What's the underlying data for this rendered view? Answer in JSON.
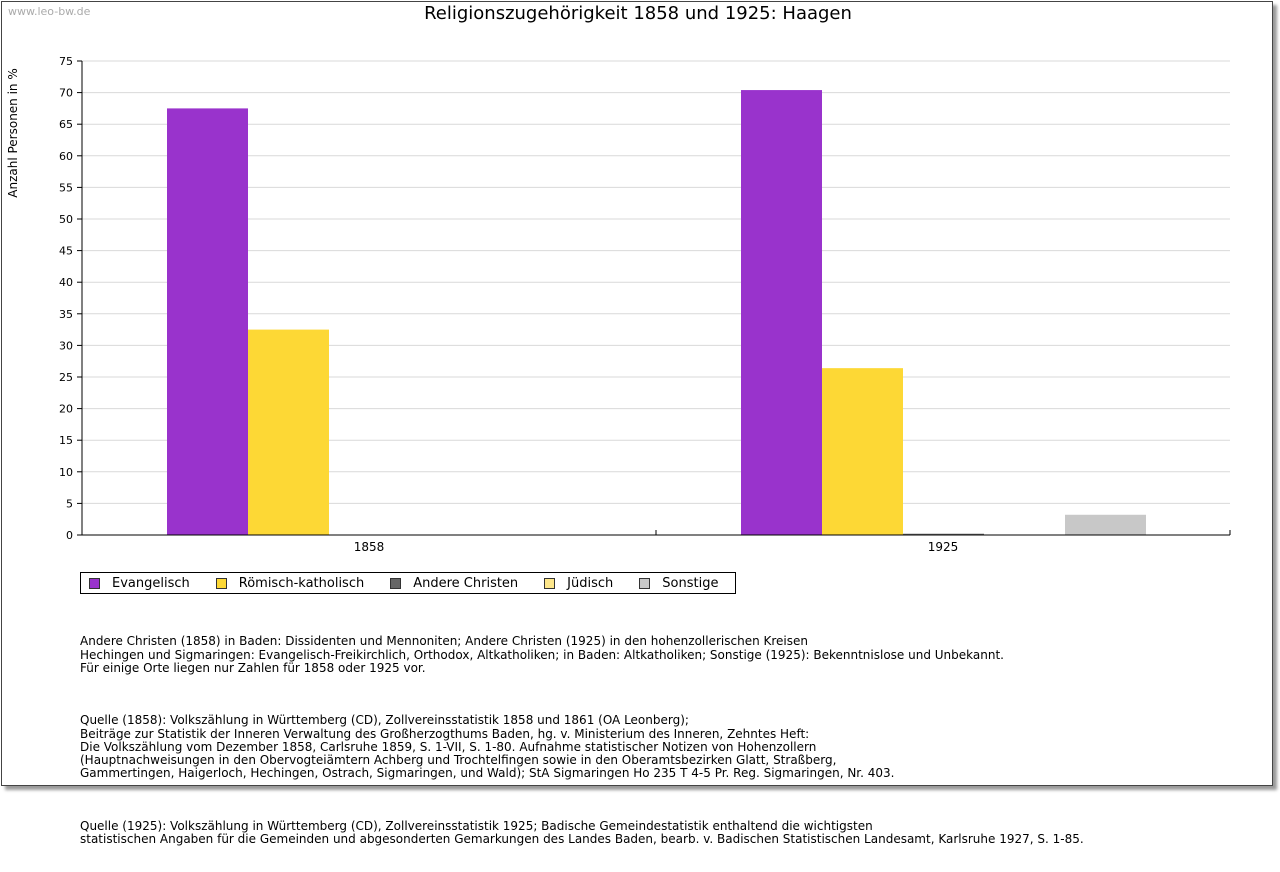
{
  "watermark": "www.leo-bw.de",
  "colors": {
    "evangelisch": "#9933cc",
    "roemisch_katholisch": "#fdd835",
    "andere_christen": "#666666",
    "juedisch": "#fde68a",
    "sonstige": "#c8c8c8",
    "grid": "#d9d9d9"
  },
  "chart_data": {
    "type": "bar",
    "title": "Religionszugehörigkeit 1858 und 1925: Haagen",
    "xlabel": "",
    "ylabel": "Anzahl Personen in %",
    "ylim": [
      0,
      75
    ],
    "yticks": [
      0,
      5,
      10,
      15,
      20,
      25,
      30,
      35,
      40,
      45,
      50,
      55,
      60,
      65,
      70,
      75
    ],
    "grid": true,
    "legend_position": "bottom",
    "categories": [
      "1858",
      "1925"
    ],
    "series": [
      {
        "name": "Evangelisch",
        "values": [
          67.5,
          70.4
        ]
      },
      {
        "name": "Römisch-katholisch",
        "values": [
          32.5,
          26.4
        ]
      },
      {
        "name": "Andere Christen",
        "values": [
          0,
          0.2
        ]
      },
      {
        "name": "Jüdisch",
        "values": [
          0,
          0
        ]
      },
      {
        "name": "Sonstige",
        "values": [
          0,
          3.2
        ]
      }
    ]
  },
  "legend": [
    {
      "label": "Evangelisch",
      "color": "#9933cc"
    },
    {
      "label": "Römisch-katholisch",
      "color": "#fdd835"
    },
    {
      "label": "Andere Christen",
      "color": "#666666"
    },
    {
      "label": "Jüdisch",
      "color": "#fde68a"
    },
    {
      "label": "Sonstige",
      "color": "#c8c8c8"
    }
  ],
  "notes": {
    "p1": "Andere Christen (1858) in Baden: Dissidenten und Mennoniten; Andere Christen (1925) in den hohenzollerischen Kreisen\nHechingen und Sigmaringen: Evangelisch-Freikirchlich, Orthodox, Altkatholiken; in Baden: Altkatholiken; Sonstige (1925): Bekenntnislose und Unbekannt.\nFür einige Orte liegen nur Zahlen für 1858 oder 1925 vor.",
    "p2": "Quelle (1858): Volkszählung in Württemberg (CD), Zollvereinsstatistik 1858 und 1861 (OA Leonberg);\nBeiträge zur Statistik der Inneren Verwaltung des Großherzogthums Baden, hg. v. Ministerium des Inneren, Zehntes Heft:\nDie Volkszählung vom Dezember 1858, Carlsruhe 1859, S. 1-VII, S. 1-80. Aufnahme statistischer Notizen von Hohenzollern\n(Hauptnachweisungen in den Obervogteiämtern Achberg und Trochtelfingen sowie in den Oberamtsbezirken Glatt, Straßberg,\nGammertingen, Haigerloch, Hechingen, Ostrach, Sigmaringen, und Wald); StA Sigmaringen Ho 235 T 4-5 Pr. Reg. Sigmaringen, Nr. 403.",
    "p3": "Quelle (1925): Volkszählung in Württemberg (CD), Zollvereinsstatistik 1925; Badische Gemeindestatistik enthaltend die wichtigsten\nstatistischen Angaben für die Gemeinden und abgesonderten Gemarkungen des Landes Baden, bearb. v. Badischen Statistischen Landesamt, Karlsruhe 1927, S. 1-85."
  }
}
